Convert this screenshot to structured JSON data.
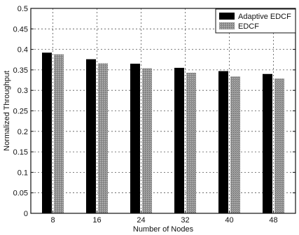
{
  "chart_data": {
    "type": "bar",
    "title": "",
    "xlabel": "Number of Nodes",
    "ylabel": "Normalized Throughput",
    "categories": [
      "8",
      "16",
      "24",
      "32",
      "40",
      "48"
    ],
    "ylim": [
      0,
      0.5
    ],
    "yticks": [
      "0",
      "0.05",
      "0.1",
      "0.15",
      "0.2",
      "0.25",
      "0.3",
      "0.35",
      "0.4",
      "0.45",
      "0.5"
    ],
    "grid": true,
    "legend_position": "top-right",
    "series": [
      {
        "name": "Adaptive EDCF",
        "values": [
          0.392,
          0.376,
          0.365,
          0.355,
          0.347,
          0.34
        ],
        "color": "#000000"
      },
      {
        "name": "EDCF",
        "values": [
          0.388,
          0.366,
          0.354,
          0.343,
          0.334,
          0.329
        ],
        "color": "#8f8f8f"
      }
    ]
  }
}
